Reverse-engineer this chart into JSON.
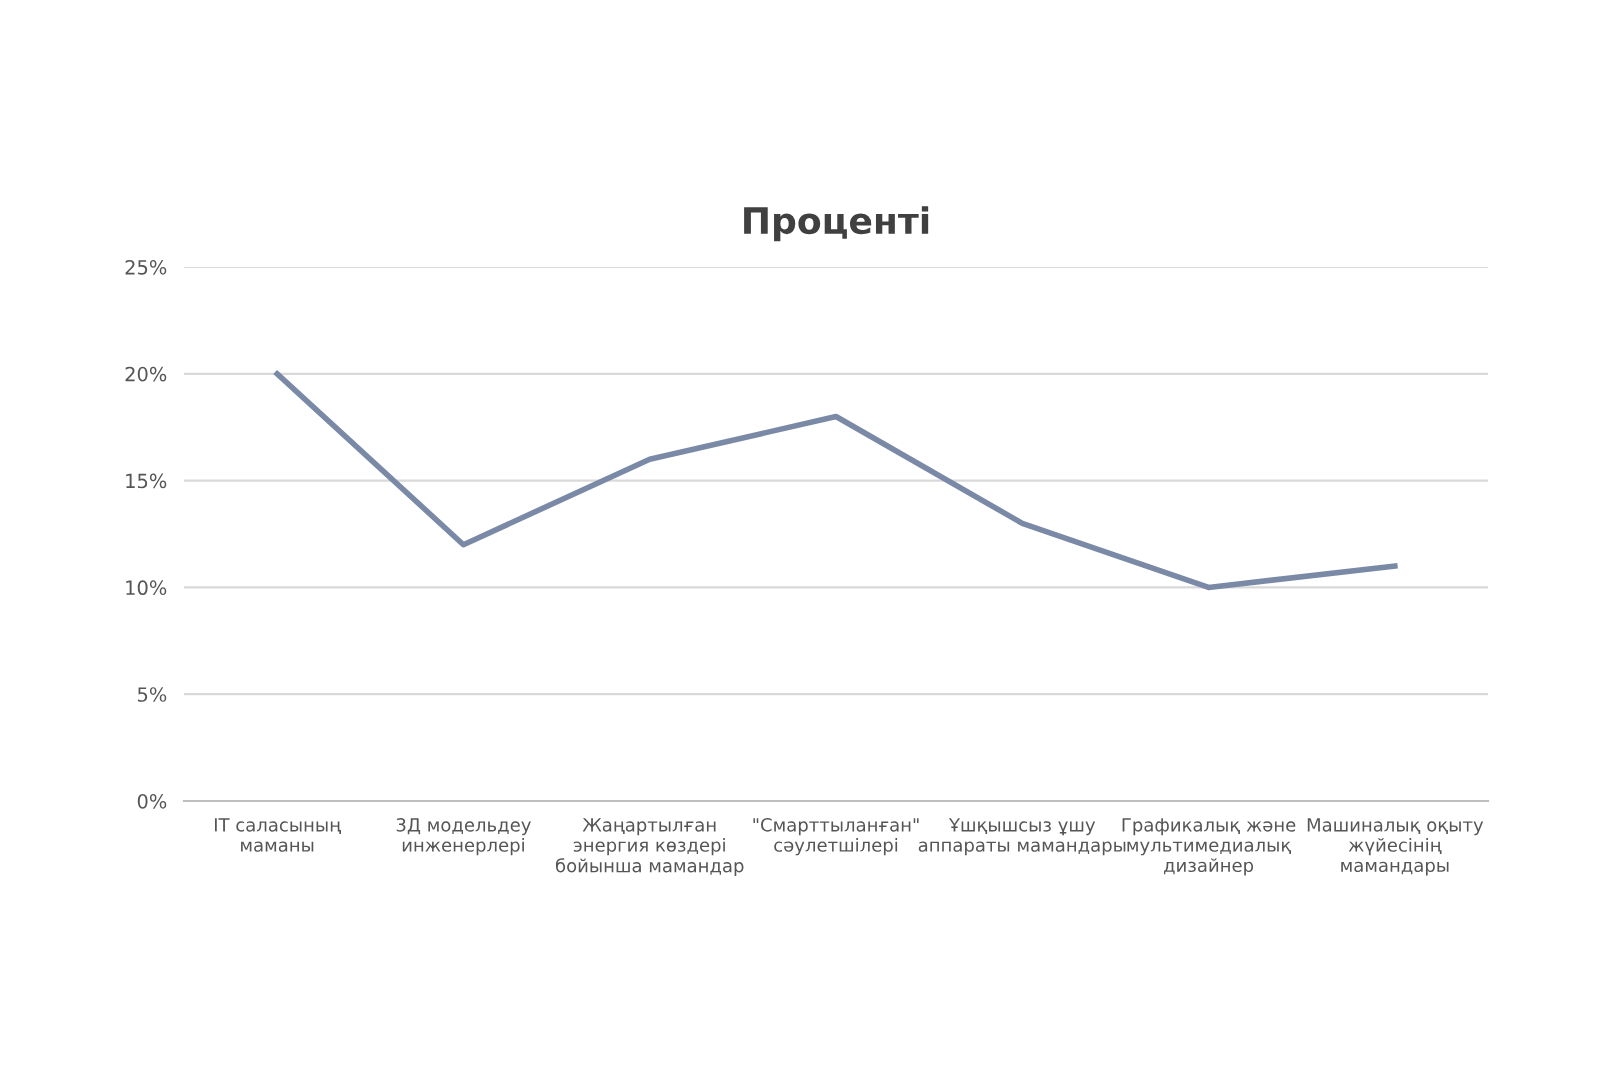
{
  "chart_data": {
    "type": "line",
    "title": "Проценті",
    "categories": [
      "IT саласының маманы",
      "3Д модельдеу инженерлері",
      "Жаңартылған энергия көздері бойынша мамандар",
      "\"Смарттыланған\" сәулетшілері",
      "Ұшқышсыз ұшу аппараты мамандары",
      "Графикалық және мультимедиалық дизайнер",
      "Машиналық оқыту жүйесінің мамандары"
    ],
    "series": [
      {
        "color": "#7a8aa6",
        "values": [
          20,
          12,
          16,
          18,
          13,
          10,
          11
        ]
      }
    ],
    "ylim": [
      0,
      25
    ],
    "yticks": [
      {
        "value": 0,
        "label": "0%"
      },
      {
        "value": 5,
        "label": "5%"
      },
      {
        "value": 10,
        "label": "10%"
      },
      {
        "value": 15,
        "label": "15%"
      },
      {
        "value": 20,
        "label": "20%"
      },
      {
        "value": 25,
        "label": "25%"
      }
    ],
    "grid": "y",
    "marker": "none",
    "line_style": "solid"
  }
}
